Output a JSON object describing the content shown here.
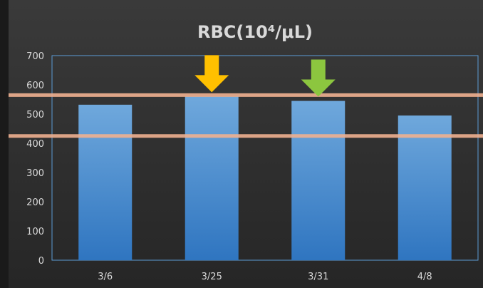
{
  "chart_data": {
    "type": "bar",
    "title": "RBC(10⁴/μL)",
    "categories": [
      "3/6",
      "3/25",
      "3/31",
      "4/8"
    ],
    "values": [
      532,
      560,
      545,
      495
    ],
    "ylim": [
      0,
      700
    ],
    "yticks": [
      0,
      100,
      200,
      300,
      400,
      500,
      600,
      700
    ],
    "grid": false,
    "reference_lines": [
      {
        "value": 565,
        "color": "#f0b090"
      },
      {
        "value": 425,
        "color": "#f0b090"
      }
    ],
    "markers": [
      {
        "category": "3/25",
        "shape": "down-arrow",
        "color": "#ffc000"
      },
      {
        "category": "3/31",
        "shape": "down-arrow",
        "color": "#8cc63f"
      }
    ],
    "colors": {
      "background_dark": "#2b2b2b",
      "outer_border": "#1a1a1a",
      "bar_top": "#6fa8dc",
      "bar_bottom": "#2f75c0",
      "plot_border": "#5b9bd5",
      "text": "#d9d9d9"
    }
  }
}
